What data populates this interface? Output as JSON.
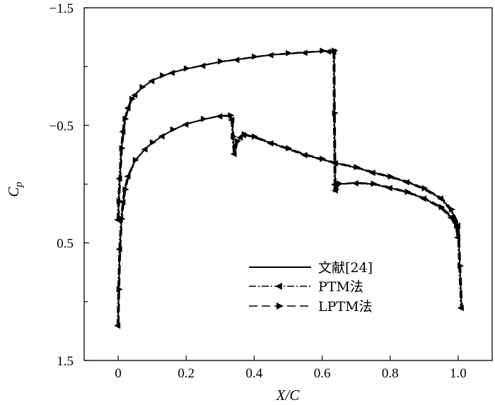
{
  "chart_data": {
    "type": "line",
    "title": "",
    "xlabel": "X/C",
    "ylabel": "C_p",
    "xlim": [
      -0.1,
      1.1
    ],
    "ylim": [
      1.5,
      -1.5
    ],
    "y_inverted": true,
    "x_ticks": [
      0,
      0.2,
      0.4,
      0.6,
      0.8,
      1.0
    ],
    "x_tick_labels": [
      "0",
      "0.2",
      "0.4",
      "0.6",
      "0.8",
      "1.0"
    ],
    "y_ticks": [
      -1.5,
      -0.5,
      0.5,
      1.5
    ],
    "y_tick_labels": [
      "−1.5",
      "−0.5",
      "0.5",
      "1.5"
    ],
    "y_minor_ticks": [
      -1.0,
      0.0,
      1.0
    ],
    "legend_position": "bottom-right",
    "series": [
      {
        "name": "文献[24]",
        "style": "solid",
        "marker": "none",
        "color": "#000000"
      },
      {
        "name": "PTM法",
        "style": "dashdot",
        "marker": "left-triangle",
        "color": "#000000"
      },
      {
        "name": "LPTM法",
        "style": "dashed",
        "marker": "right-triangle",
        "color": "#000000"
      }
    ],
    "upper_surface": {
      "x": [
        0.0,
        0.002,
        0.005,
        0.01,
        0.015,
        0.02,
        0.03,
        0.04,
        0.05,
        0.07,
        0.1,
        0.13,
        0.16,
        0.2,
        0.25,
        0.3,
        0.35,
        0.4,
        0.45,
        0.5,
        0.55,
        0.6,
        0.62,
        0.635
      ],
      "y": [
        0.3,
        0.15,
        -0.05,
        -0.3,
        -0.45,
        -0.55,
        -0.65,
        -0.72,
        -0.76,
        -0.82,
        -0.88,
        -0.92,
        -0.95,
        -0.98,
        -1.01,
        -1.04,
        -1.06,
        -1.08,
        -1.1,
        -1.11,
        -1.12,
        -1.13,
        -1.13,
        -1.13
      ]
    },
    "upper_shock": {
      "x": [
        0.635,
        0.636,
        0.638,
        0.64
      ],
      "y": [
        -1.13,
        -0.6,
        0.0,
        0.05
      ]
    },
    "upper_aft": {
      "x": [
        0.64,
        0.65,
        0.7,
        0.75,
        0.8,
        0.85,
        0.9,
        0.95,
        0.98,
        0.995,
        1.0
      ],
      "y": [
        0.05,
        0.0,
        -0.01,
        0.0,
        0.03,
        0.07,
        0.12,
        0.2,
        0.28,
        0.36,
        0.45
      ]
    },
    "lower_surface": {
      "x": [
        0.0,
        0.002,
        0.005,
        0.01,
        0.015,
        0.02,
        0.03,
        0.05,
        0.08,
        0.1,
        0.13,
        0.16,
        0.2,
        0.25,
        0.3,
        0.33,
        0.335
      ],
      "y": [
        1.2,
        0.9,
        0.55,
        0.3,
        0.15,
        0.05,
        -0.07,
        -0.2,
        -0.3,
        -0.35,
        -0.41,
        -0.46,
        -0.51,
        -0.55,
        -0.58,
        -0.58,
        -0.55
      ]
    },
    "lower_shock": {
      "x": [
        0.335,
        0.338,
        0.342,
        0.35,
        0.36,
        0.37
      ],
      "y": [
        -0.55,
        -0.4,
        -0.26,
        -0.36,
        -0.4,
        -0.42
      ]
    },
    "lower_aft": {
      "x": [
        0.37,
        0.4,
        0.45,
        0.5,
        0.55,
        0.6,
        0.64,
        0.7,
        0.75,
        0.8,
        0.85,
        0.9,
        0.95,
        0.98,
        1.0,
        1.005,
        1.01
      ],
      "y": [
        -0.42,
        -0.4,
        -0.35,
        -0.3,
        -0.25,
        -0.21,
        -0.18,
        -0.14,
        -0.1,
        -0.06,
        -0.02,
        0.04,
        0.12,
        0.22,
        0.35,
        0.7,
        1.05
      ]
    }
  }
}
